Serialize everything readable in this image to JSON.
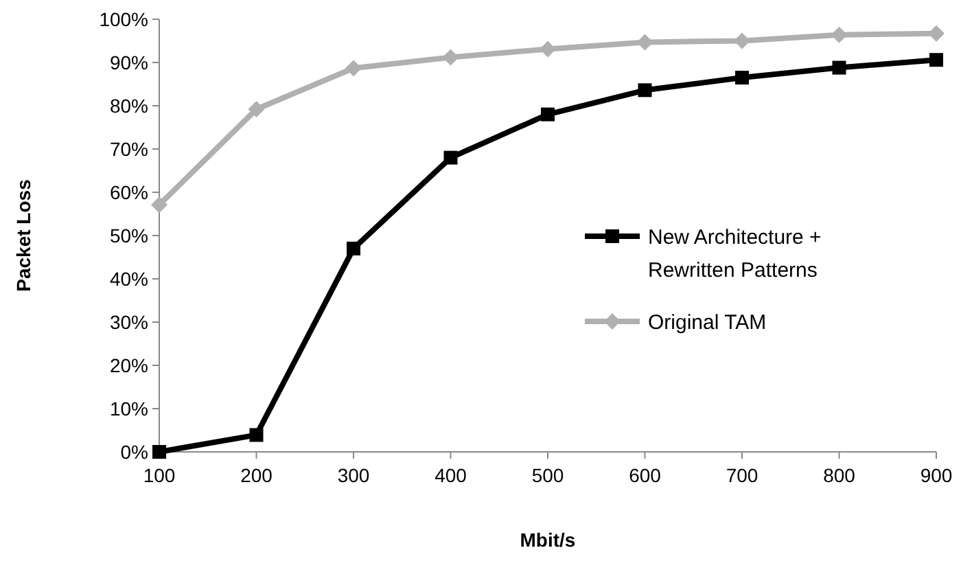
{
  "chart_data": {
    "type": "line",
    "xlabel": "Mbit/s",
    "ylabel": "Packet Loss",
    "x": [
      100,
      200,
      300,
      400,
      500,
      600,
      700,
      800,
      900
    ],
    "xlim": [
      100,
      900
    ],
    "xticks": [
      100,
      200,
      300,
      400,
      500,
      600,
      700,
      800,
      900
    ],
    "ylim": [
      0,
      100
    ],
    "yticks": [
      {
        "value": 0,
        "label": "0%"
      },
      {
        "value": 10,
        "label": "10%"
      },
      {
        "value": 20,
        "label": "20%"
      },
      {
        "value": 30,
        "label": "30%"
      },
      {
        "value": 40,
        "label": "40%"
      },
      {
        "value": 50,
        "label": "50%"
      },
      {
        "value": 60,
        "label": "60%"
      },
      {
        "value": 70,
        "label": "70%"
      },
      {
        "value": 80,
        "label": "80%"
      },
      {
        "value": 90,
        "label": "90%"
      },
      {
        "value": 100,
        "label": "100%"
      }
    ],
    "grid": false,
    "legend": "right",
    "series": [
      {
        "name": "New Architecture + Rewritten Patterns",
        "color": "#000000",
        "marker": "square",
        "values": [
          0,
          3.9,
          47,
          68,
          78,
          83.6,
          86.5,
          88.8,
          90.6
        ]
      },
      {
        "name": "Original TAM",
        "color": "#b0b0b0",
        "marker": "diamond",
        "values": [
          57.1,
          79.2,
          88.7,
          91.2,
          93.1,
          94.7,
          95,
          96.4,
          96.7
        ]
      }
    ]
  }
}
